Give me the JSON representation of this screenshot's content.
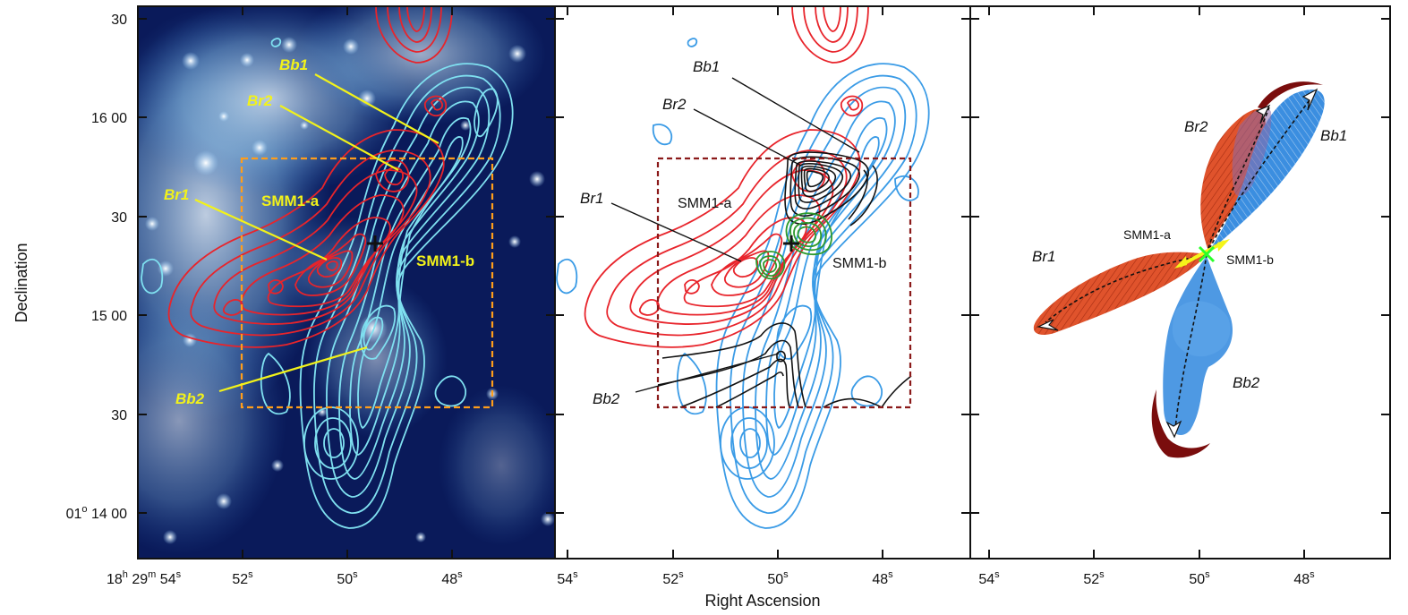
{
  "axes": {
    "xlabel": "Right Ascension",
    "ylabel": "Declination",
    "dec_ticks": [
      {
        "label": "30",
        "prefix": "",
        "sup": ""
      },
      {
        "label": "16 00",
        "prefix": "",
        "sup": ""
      },
      {
        "label": "30",
        "prefix": "",
        "sup": ""
      },
      {
        "label": "15 00",
        "prefix": "",
        "sup": ""
      },
      {
        "label": "30",
        "prefix": "",
        "sup": ""
      },
      {
        "label": "14 00",
        "prefix": "01",
        "sup": "o"
      }
    ],
    "ra_first": {
      "h": "18",
      "m": "29",
      "s": "54"
    },
    "ra_ticks": [
      "52",
      "50",
      "48"
    ],
    "ra_ticks_full": [
      "54",
      "52",
      "50",
      "48"
    ],
    "unit_h": "h",
    "unit_m": "m",
    "unit_s": "s"
  },
  "panel1": {
    "labels": {
      "bb1": "Bb1",
      "br2": "Br2",
      "br1": "Br1",
      "smm1a": "SMM1-a",
      "smm1b": "SMM1-b",
      "bb2": "Bb2"
    },
    "colors": {
      "red_contour": "#e8242b",
      "cyan_contour": "#7fe0f0",
      "box": "#ff9d1a",
      "label": "#f2f21a"
    }
  },
  "panel2": {
    "labels": {
      "bb1": "Bb1",
      "br2": "Br2",
      "br1": "Br1",
      "smm1a": "SMM1-a",
      "smm1b": "SMM1-b",
      "bb2": "Bb2"
    },
    "colors": {
      "red_contour": "#e8242b",
      "blue_contour": "#3a9be6",
      "black_contour": "#111111",
      "green_contour": "#2e9a2e",
      "box": "#8b1a1a"
    }
  },
  "panel3": {
    "labels": {
      "br2": "Br2",
      "bb1": "Bb1",
      "smm1a": "SMM1-a",
      "smm1b": "SMM1-b",
      "br1": "Br1",
      "bb2": "Bb2"
    },
    "colors": {
      "red_lobe": "#e0532c",
      "blue_lobe": "#3b8ee0",
      "dark_red_arc": "#7a0d0d",
      "center": "#2aff2a",
      "arrow": "#f5f51a"
    }
  }
}
